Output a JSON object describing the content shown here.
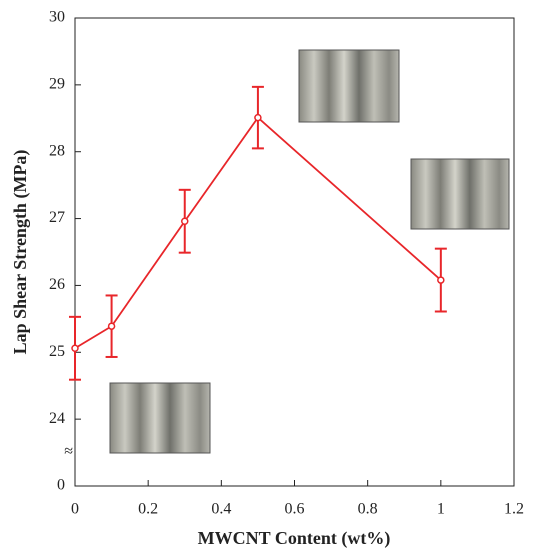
{
  "chart_data": {
    "type": "line",
    "xlabel": "MWCNT Content (wt%)",
    "ylabel": "Lap Shear Strength (MPa)",
    "x": [
      0,
      0.1,
      0.3,
      0.5,
      1
    ],
    "series": [
      {
        "color": "#e8262a",
        "values": [
          25.06,
          25.39,
          26.96,
          28.51,
          26.08
        ],
        "errors": [
          0.47,
          0.46,
          0.47,
          0.46,
          0.47
        ]
      }
    ],
    "xlim": [
      0,
      1.2
    ],
    "xticks": [
      0,
      0.2,
      0.4,
      0.6,
      0.8,
      1,
      1.2
    ],
    "ylim": [
      0,
      30
    ],
    "yticks": [
      0,
      24,
      25,
      26,
      27,
      28,
      29,
      30
    ],
    "y_break_label": "≈"
  }
}
